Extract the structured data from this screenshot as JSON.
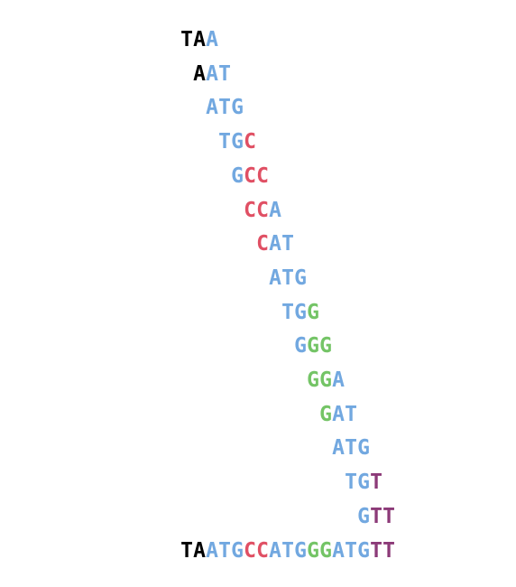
{
  "colors": {
    "black": "#000000",
    "blue": "#72a8e0",
    "red": "#e05064",
    "green": "#74c466",
    "purple": "#8c3a78"
  },
  "kmers": [
    {
      "text": "TAA",
      "colors": [
        "black",
        "black",
        "blue"
      ]
    },
    {
      "text": "AAT",
      "colors": [
        "black",
        "blue",
        "blue"
      ]
    },
    {
      "text": "ATG",
      "colors": [
        "blue",
        "blue",
        "blue"
      ]
    },
    {
      "text": "TGC",
      "colors": [
        "blue",
        "blue",
        "red"
      ]
    },
    {
      "text": "GCC",
      "colors": [
        "blue",
        "red",
        "red"
      ]
    },
    {
      "text": "CCA",
      "colors": [
        "red",
        "red",
        "blue"
      ]
    },
    {
      "text": "CAT",
      "colors": [
        "red",
        "blue",
        "blue"
      ]
    },
    {
      "text": "ATG",
      "colors": [
        "blue",
        "blue",
        "blue"
      ]
    },
    {
      "text": "TGG",
      "colors": [
        "blue",
        "blue",
        "green"
      ]
    },
    {
      "text": "GGG",
      "colors": [
        "blue",
        "green",
        "green"
      ]
    },
    {
      "text": "GGA",
      "colors": [
        "green",
        "green",
        "blue"
      ]
    },
    {
      "text": "GAT",
      "colors": [
        "green",
        "blue",
        "blue"
      ]
    },
    {
      "text": "ATG",
      "colors": [
        "blue",
        "blue",
        "blue"
      ]
    },
    {
      "text": "TGT",
      "colors": [
        "blue",
        "blue",
        "purple"
      ]
    },
    {
      "text": "GTT",
      "colors": [
        "blue",
        "purple",
        "purple"
      ]
    }
  ],
  "full_sequence": {
    "text": "TAATGCCATGGGATGTT",
    "colors": [
      "black",
      "black",
      "blue",
      "blue",
      "blue",
      "red",
      "red",
      "blue",
      "blue",
      "blue",
      "green",
      "green",
      "blue",
      "blue",
      "blue",
      "purple",
      "purple"
    ]
  }
}
